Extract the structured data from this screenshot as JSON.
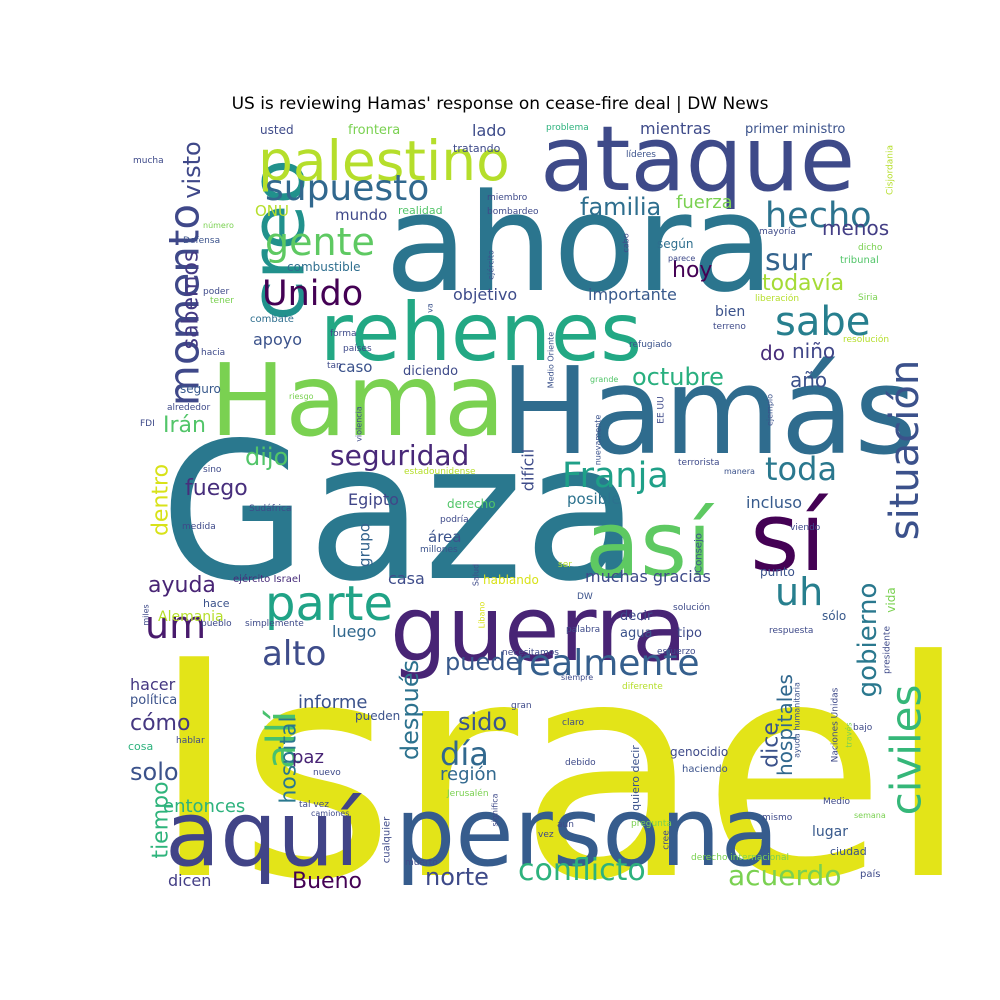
{
  "title": "US is reviewing Hamas' response on cease-fire deal | DW News",
  "chart_data": {
    "type": "wordcloud",
    "title": "US is reviewing Hamas' response on cease-fire deal | DW News",
    "colormap": "viridis",
    "words": [
      {
        "text": "Israel",
        "weight": 1.0
      },
      {
        "text": "Gaza",
        "weight": 0.97
      },
      {
        "text": "ahora",
        "weight": 0.78
      },
      {
        "text": "Hamás",
        "weight": 0.72
      },
      {
        "text": "Hama",
        "weight": 0.6
      },
      {
        "text": "persona",
        "weight": 0.57
      },
      {
        "text": "guerra",
        "weight": 0.56
      },
      {
        "text": "ataque",
        "weight": 0.53
      },
      {
        "text": "así",
        "weight": 0.5
      },
      {
        "text": "aquí",
        "weight": 0.5
      },
      {
        "text": "rehenes",
        "weight": 0.49
      },
      {
        "text": "creo",
        "weight": 0.47
      },
      {
        "text": "sí",
        "weight": 0.42
      },
      {
        "text": "palestino",
        "weight": 0.34
      },
      {
        "text": "parte",
        "weight": 0.3
      },
      {
        "text": "momento",
        "weight": 0.29
      },
      {
        "text": "civiles",
        "weight": 0.3
      },
      {
        "text": "situación",
        "weight": 0.29
      },
      {
        "text": "allí",
        "weight": 0.28
      },
      {
        "text": "realmente",
        "weight": 0.27
      },
      {
        "text": "sabe",
        "weight": 0.26
      },
      {
        "text": "supuesto",
        "weight": 0.25
      },
      {
        "text": "Franja",
        "weight": 0.25
      },
      {
        "text": "hecho",
        "weight": 0.25
      },
      {
        "text": "um",
        "weight": 0.25
      },
      {
        "text": "uh",
        "weight": 0.24
      },
      {
        "text": "gente",
        "weight": 0.24
      },
      {
        "text": "Unido",
        "weight": 0.23
      },
      {
        "text": "alto",
        "weight": 0.23
      },
      {
        "text": "día",
        "weight": 0.23
      },
      {
        "text": "toda",
        "weight": 0.22
      },
      {
        "text": "conflicto",
        "weight": 0.21
      },
      {
        "text": "acuerdo",
        "weight": 0.2
      },
      {
        "text": "seguridad",
        "weight": 0.19
      },
      {
        "text": "sur",
        "weight": 0.19
      },
      {
        "text": "octubre",
        "weight": 0.18
      },
      {
        "text": "gobierno",
        "weight": 0.18
      },
      {
        "text": "después",
        "weight": 0.18
      },
      {
        "text": "hospital",
        "weight": 0.17
      },
      {
        "text": "visto",
        "weight": 0.17
      },
      {
        "text": "familia",
        "weight": 0.17
      },
      {
        "text": "sabemos",
        "weight": 0.17
      },
      {
        "text": "dentro",
        "weight": 0.16
      },
      {
        "text": "tiempo",
        "weight": 0.16
      },
      {
        "text": "dice",
        "weight": 0.16
      },
      {
        "text": "solo",
        "weight": 0.16
      },
      {
        "text": "norte",
        "weight": 0.16
      },
      {
        "text": "Bueno",
        "weight": 0.16
      },
      {
        "text": "sido",
        "weight": 0.16
      },
      {
        "text": "hospitales",
        "weight": 0.15
      },
      {
        "text": "puede",
        "weight": 0.15
      },
      {
        "text": "todavía",
        "weight": 0.15
      },
      {
        "text": "menos",
        "weight": 0.15
      },
      {
        "text": "hoy",
        "weight": 0.15
      },
      {
        "text": "dijo",
        "weight": 0.15
      },
      {
        "text": "fuego",
        "weight": 0.14
      },
      {
        "text": "ayuda",
        "weight": 0.14
      },
      {
        "text": "Irán",
        "weight": 0.14
      },
      {
        "text": "año",
        "weight": 0.14
      },
      {
        "text": "niño",
        "weight": 0.14
      },
      {
        "text": "do",
        "weight": 0.14
      },
      {
        "text": "cómo",
        "weight": 0.14
      },
      {
        "text": "paz",
        "weight": 0.13
      },
      {
        "text": "fuerza",
        "weight": 0.13
      },
      {
        "text": "informe",
        "weight": 0.13
      },
      {
        "text": "región",
        "weight": 0.13
      },
      {
        "text": "entonces",
        "weight": 0.13
      },
      {
        "text": "muchas gracias",
        "weight": 0.12
      },
      {
        "text": "difícil",
        "weight": 0.12
      },
      {
        "text": "incluso",
        "weight": 0.12
      },
      {
        "text": "luego",
        "weight": 0.12
      },
      {
        "text": "hacer",
        "weight": 0.12
      },
      {
        "text": "Egipto",
        "weight": 0.11
      },
      {
        "text": "dicen",
        "weight": 0.11
      },
      {
        "text": "casa",
        "weight": 0.11
      },
      {
        "text": "objetivo",
        "weight": 0.11
      },
      {
        "text": "importante",
        "weight": 0.11
      },
      {
        "text": "mientras",
        "weight": 0.11
      },
      {
        "text": "mundo",
        "weight": 0.11
      },
      {
        "text": "apoyo",
        "weight": 0.11
      },
      {
        "text": "ONU",
        "weight": 0.11
      },
      {
        "text": "lado",
        "weight": 0.11
      },
      {
        "text": "grupo",
        "weight": 0.11
      },
      {
        "text": "área",
        "weight": 0.11
      },
      {
        "text": "caso",
        "weight": 0.1
      },
      {
        "text": "posible",
        "weight": 0.1
      },
      {
        "text": "bien",
        "weight": 0.1
      },
      {
        "text": "lugar",
        "weight": 0.1
      },
      {
        "text": "diciendo",
        "weight": 0.1
      },
      {
        "text": "Alemania",
        "weight": 0.1
      },
      {
        "text": "usted",
        "weight": 0.09
      },
      {
        "text": "frontera",
        "weight": 0.09
      },
      {
        "text": "primer ministro",
        "weight": 0.09
      },
      {
        "text": "realidad",
        "weight": 0.09
      },
      {
        "text": "combustible",
        "weight": 0.09
      },
      {
        "text": "seguro",
        "weight": 0.09
      },
      {
        "text": "política",
        "weight": 0.09
      },
      {
        "text": "decir",
        "weight": 0.09
      },
      {
        "text": "tipo",
        "weight": 0.09
      },
      {
        "text": "agua",
        "weight": 0.09
      },
      {
        "text": "según",
        "weight": 0.09
      },
      {
        "text": "vida",
        "weight": 0.09
      },
      {
        "text": "punto",
        "weight": 0.09
      },
      {
        "text": "hablando",
        "weight": 0.09
      },
      {
        "text": "pueden",
        "weight": 0.09
      },
      {
        "text": "genocidio",
        "weight": 0.09
      },
      {
        "text": "hace",
        "weight": 0.08
      },
      {
        "text": "sólo",
        "weight": 0.08
      },
      {
        "text": "ciudad",
        "weight": 0.08
      },
      {
        "text": "derecho",
        "weight": 0.08
      },
      {
        "text": "quiero decir",
        "weight": 0.08
      },
      {
        "text": "tratando",
        "weight": 0.07
      },
      {
        "text": "Consejo",
        "weight": 0.07
      },
      {
        "text": "cosa",
        "weight": 0.07
      },
      {
        "text": "combate",
        "weight": 0.07
      },
      {
        "text": "ejército Israel",
        "weight": 0.07
      },
      {
        "text": "cualquier",
        "weight": 0.07
      },
      {
        "text": "haciendo",
        "weight": 0.07
      },
      {
        "text": "tribunal",
        "weight": 0.07
      },
      {
        "text": "problema",
        "weight": 0.06
      },
      {
        "text": "líderes",
        "weight": 0.06
      },
      {
        "text": "miembro",
        "weight": 0.06
      },
      {
        "text": "bombardeo",
        "weight": 0.06
      },
      {
        "text": "Cisjordania",
        "weight": 0.06
      },
      {
        "text": "Defensa",
        "weight": 0.06
      },
      {
        "text": "mayoría",
        "weight": 0.06
      },
      {
        "text": "dicho",
        "weight": 0.06
      },
      {
        "text": "parece",
        "weight": 0.06
      },
      {
        "text": "cabo",
        "weight": 0.06
      },
      {
        "text": "ejército",
        "weight": 0.06
      },
      {
        "text": "poder",
        "weight": 0.06
      },
      {
        "text": "tener",
        "weight": 0.06
      },
      {
        "text": "liberación",
        "weight": 0.06
      },
      {
        "text": "Siria",
        "weight": 0.06
      },
      {
        "text": "terreno",
        "weight": 0.06
      },
      {
        "text": "refugiado",
        "weight": 0.06
      },
      {
        "text": "resolución",
        "weight": 0.06
      },
      {
        "text": "Medio Oriente",
        "weight": 0.06
      },
      {
        "text": "forma",
        "weight": 0.06
      },
      {
        "text": "países",
        "weight": 0.06
      },
      {
        "text": "hacia",
        "weight": 0.06
      },
      {
        "text": "va",
        "weight": 0.06
      },
      {
        "text": "tan",
        "weight": 0.06
      },
      {
        "text": "riesgo",
        "weight": 0.06
      },
      {
        "text": "alrededor",
        "weight": 0.06
      },
      {
        "text": "FDI",
        "weight": 0.06
      },
      {
        "text": "violencia",
        "weight": 0.06
      },
      {
        "text": "grande",
        "weight": 0.06
      },
      {
        "text": "nuevamente",
        "weight": 0.06
      },
      {
        "text": "EE UU",
        "weight": 0.06
      },
      {
        "text": "ejemplo",
        "weight": 0.06
      },
      {
        "text": "terrorista",
        "weight": 0.06
      },
      {
        "text": "manera",
        "weight": 0.06
      },
      {
        "text": "estadounidense",
        "weight": 0.06
      },
      {
        "text": "sino",
        "weight": 0.06
      },
      {
        "text": "Sudáfrica",
        "weight": 0.06
      },
      {
        "text": "medida",
        "weight": 0.06
      },
      {
        "text": "podría",
        "weight": 0.06
      },
      {
        "text": "millones",
        "weight": 0.06
      },
      {
        "text": "viendo",
        "weight": 0.06
      },
      {
        "text": "Salud",
        "weight": 0.06
      },
      {
        "text": "ser",
        "weight": 0.06
      },
      {
        "text": "miles",
        "weight": 0.06
      },
      {
        "text": "pueblo",
        "weight": 0.06
      },
      {
        "text": "simplemente",
        "weight": 0.06
      },
      {
        "text": "Líbano",
        "weight": 0.06
      },
      {
        "text": "DW",
        "weight": 0.06
      },
      {
        "text": "solución",
        "weight": 0.06
      },
      {
        "text": "presidente",
        "weight": 0.06
      },
      {
        "text": "respuesta",
        "weight": 0.06
      },
      {
        "text": "palabra",
        "weight": 0.06
      },
      {
        "text": "necesitamos",
        "weight": 0.06
      },
      {
        "text": "esfuerzo",
        "weight": 0.06
      },
      {
        "text": "siempre",
        "weight": 0.06
      },
      {
        "text": "diferente",
        "weight": 0.06
      },
      {
        "text": "Naciones Unidas",
        "weight": 0.06
      },
      {
        "text": "ayuda humanitaria",
        "weight": 0.06
      },
      {
        "text": "través",
        "weight": 0.06
      },
      {
        "text": "bajo",
        "weight": 0.06
      },
      {
        "text": "hablar",
        "weight": 0.06
      },
      {
        "text": "gran",
        "weight": 0.06
      },
      {
        "text": "claro",
        "weight": 0.06
      },
      {
        "text": "debido",
        "weight": 0.06
      },
      {
        "text": "nuevo",
        "weight": 0.06
      },
      {
        "text": "tal vez",
        "weight": 0.06
      },
      {
        "text": "camiones",
        "weight": 0.06
      },
      {
        "text": "Jerusalén",
        "weight": 0.06
      },
      {
        "text": "significa",
        "weight": 0.06
      },
      {
        "text": "aún",
        "weight": 0.06
      },
      {
        "text": "vez",
        "weight": 0.06
      },
      {
        "text": "cree",
        "weight": 0.06
      },
      {
        "text": "mismo",
        "weight": 0.06
      },
      {
        "text": "Medio",
        "weight": 0.06
      },
      {
        "text": "semana",
        "weight": 0.06
      },
      {
        "text": "muerto",
        "weight": 0.06
      },
      {
        "text": "pregunta",
        "weight": 0.06
      },
      {
        "text": "derecho internacional",
        "weight": 0.06
      },
      {
        "text": "país",
        "weight": 0.06
      },
      {
        "text": "mucha",
        "weight": 0.06
      },
      {
        "text": "número",
        "weight": 0.06
      }
    ]
  }
}
